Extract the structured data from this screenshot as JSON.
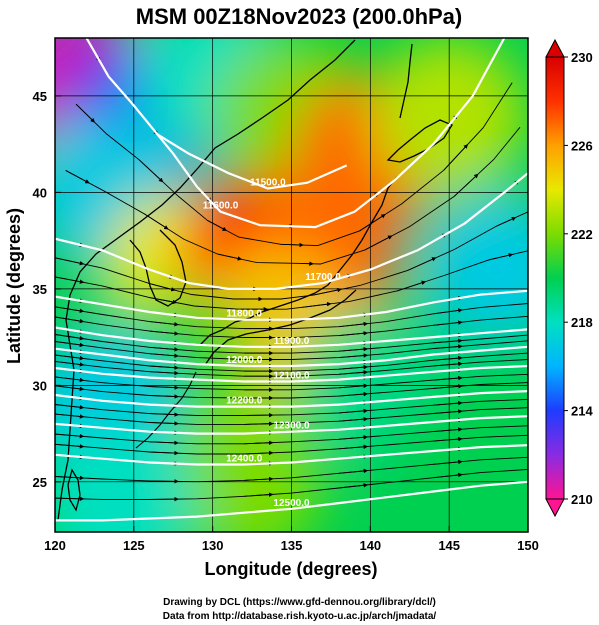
{
  "chart_data": {
    "type": "heatmap",
    "title": "MSM 00Z18Nov2023 (200.0hPa)",
    "xlabel": "Longitude (degrees)",
    "ylabel": "Latitude  (degrees)",
    "xlim": [
      120,
      150
    ],
    "ylim": [
      22.4,
      48
    ],
    "x_ticks": [
      120,
      125,
      130,
      135,
      140,
      145,
      150
    ],
    "y_ticks": [
      25,
      30,
      35,
      40,
      45
    ],
    "colorbar": {
      "min": 210,
      "max": 230,
      "ticks": [
        210,
        214,
        218,
        222,
        226,
        230
      ],
      "colors": [
        "#ff1493",
        "#8a2be2",
        "#1e3cff",
        "#00b4ff",
        "#00e0c0",
        "#00d050",
        "#7cdc00",
        "#e8e800",
        "#ffa000",
        "#ff3000",
        "#d80000"
      ]
    },
    "temperature_field": [
      {
        "lon": 121,
        "lat": 46,
        "value": 211
      },
      {
        "lon": 126,
        "lat": 44,
        "value": 214
      },
      {
        "lon": 130,
        "lat": 46,
        "value": 218
      },
      {
        "lon": 135,
        "lat": 44,
        "value": 222
      },
      {
        "lon": 140,
        "lat": 42,
        "value": 227
      },
      {
        "lon": 145,
        "lat": 44,
        "value": 223
      },
      {
        "lon": 148,
        "lat": 36,
        "value": 217
      },
      {
        "lon": 123,
        "lat": 40,
        "value": 217
      },
      {
        "lon": 128,
        "lat": 36,
        "value": 224
      },
      {
        "lon": 133,
        "lat": 37,
        "value": 228
      },
      {
        "lon": 137,
        "lat": 37,
        "value": 227
      },
      {
        "lon": 134,
        "lat": 33,
        "value": 225
      },
      {
        "lon": 128,
        "lat": 31,
        "value": 221
      },
      {
        "lon": 123,
        "lat": 29,
        "value": 217
      },
      {
        "lon": 140,
        "lat": 30,
        "value": 219
      },
      {
        "lon": 146,
        "lat": 26,
        "value": 220
      },
      {
        "lon": 132,
        "lat": 25,
        "value": 222
      },
      {
        "lon": 124,
        "lat": 24,
        "value": 218
      }
    ],
    "contours": [
      {
        "label": "11500.0",
        "points": [
          [
            126.5,
            43
          ],
          [
            128.5,
            42
          ],
          [
            131,
            41
          ],
          [
            133.5,
            40.2
          ],
          [
            136,
            40.5
          ],
          [
            138.5,
            41.4
          ]
        ]
      },
      {
        "label": "11600.0",
        "points": [
          [
            122,
            48
          ],
          [
            123.4,
            46
          ],
          [
            125,
            44.5
          ],
          [
            127.5,
            42
          ],
          [
            129,
            40.3
          ],
          [
            130.5,
            39
          ],
          [
            133,
            38.3
          ],
          [
            136.5,
            38.2
          ],
          [
            139,
            39
          ],
          [
            141.5,
            40.6
          ],
          [
            144,
            42.5
          ],
          [
            146.5,
            45
          ],
          [
            148.5,
            48
          ]
        ]
      },
      {
        "label": "11700.0",
        "points": [
          [
            120,
            37.6
          ],
          [
            123,
            37
          ],
          [
            126,
            36
          ],
          [
            128.5,
            35.3
          ],
          [
            131,
            35
          ],
          [
            134,
            35
          ],
          [
            137,
            35.3
          ],
          [
            140,
            36
          ],
          [
            143,
            37
          ],
          [
            146,
            38.4
          ],
          [
            148.5,
            40
          ],
          [
            150,
            41
          ]
        ]
      },
      {
        "label": "11800.0",
        "points": [
          [
            120,
            34.6
          ],
          [
            123,
            34.2
          ],
          [
            126,
            33.8
          ],
          [
            129,
            33.5
          ],
          [
            132,
            33.4
          ],
          [
            135,
            33.4
          ],
          [
            138,
            33.5
          ],
          [
            141,
            33.8
          ],
          [
            144,
            34.3
          ],
          [
            147,
            34.7
          ],
          [
            150,
            34.9
          ]
        ]
      },
      {
        "label": "11900.0",
        "points": [
          [
            120,
            33
          ],
          [
            123,
            32.6
          ],
          [
            126,
            32.3
          ],
          [
            129,
            32.1
          ],
          [
            132,
            32
          ],
          [
            135,
            32
          ],
          [
            138,
            32.1
          ],
          [
            141,
            32.3
          ],
          [
            144,
            32.5
          ],
          [
            147,
            32.7
          ],
          [
            150,
            32.9
          ]
        ]
      },
      {
        "label": "12000.0",
        "points": [
          [
            120,
            31.9
          ],
          [
            123,
            31.6
          ],
          [
            126,
            31.3
          ],
          [
            129,
            31.1
          ],
          [
            132,
            31
          ],
          [
            135,
            31
          ],
          [
            138,
            31.1
          ],
          [
            141,
            31.3
          ],
          [
            144,
            31.6
          ],
          [
            147,
            31.8
          ],
          [
            150,
            32
          ]
        ]
      },
      {
        "label": "12100.0",
        "points": [
          [
            120,
            30.9
          ],
          [
            123,
            30.6
          ],
          [
            126,
            30.4
          ],
          [
            129,
            30.3
          ],
          [
            132,
            30.2
          ],
          [
            135,
            30.2
          ],
          [
            138,
            30.3
          ],
          [
            141,
            30.5
          ],
          [
            144,
            30.7
          ],
          [
            147,
            30.9
          ],
          [
            150,
            31
          ]
        ]
      },
      {
        "label": "12200.0",
        "points": [
          [
            120,
            29.5
          ],
          [
            123,
            29.2
          ],
          [
            126,
            29
          ],
          [
            129,
            28.9
          ],
          [
            132,
            28.9
          ],
          [
            135,
            28.9
          ],
          [
            138,
            29
          ],
          [
            141,
            29.2
          ],
          [
            144,
            29.4
          ],
          [
            147,
            29.6
          ],
          [
            150,
            29.7
          ]
        ]
      },
      {
        "label": "12300.0",
        "points": [
          [
            120,
            28
          ],
          [
            123,
            27.8
          ],
          [
            126,
            27.6
          ],
          [
            129,
            27.5
          ],
          [
            132,
            27.5
          ],
          [
            135,
            27.6
          ],
          [
            138,
            27.7
          ],
          [
            141,
            27.9
          ],
          [
            144,
            28.1
          ],
          [
            147,
            28.3
          ],
          [
            150,
            28.4
          ]
        ]
      },
      {
        "label": "12400.0",
        "points": [
          [
            120,
            26.4
          ],
          [
            123,
            26.2
          ],
          [
            126,
            26
          ],
          [
            129,
            25.9
          ],
          [
            132,
            25.9
          ],
          [
            135,
            26
          ],
          [
            138,
            26.2
          ],
          [
            141,
            26.4
          ],
          [
            144,
            26.6
          ],
          [
            147,
            26.8
          ],
          [
            150,
            26.9
          ]
        ]
      },
      {
        "label": "12500.0",
        "points": [
          [
            120,
            23
          ],
          [
            123,
            23
          ],
          [
            126,
            23.1
          ],
          [
            129,
            23.2
          ],
          [
            132,
            23.4
          ],
          [
            135,
            23.6
          ],
          [
            138,
            23.9
          ],
          [
            141,
            24.2
          ],
          [
            144,
            24.5
          ],
          [
            147,
            24.8
          ],
          [
            150,
            25
          ]
        ]
      }
    ]
  },
  "credits": {
    "line1": "Drawing by DCL (https://www.gfd-dennou.org/library/dcl/)",
    "line2": "Data from http://database.rish.kyoto-u.ac.jp/arch/jmadata/"
  }
}
